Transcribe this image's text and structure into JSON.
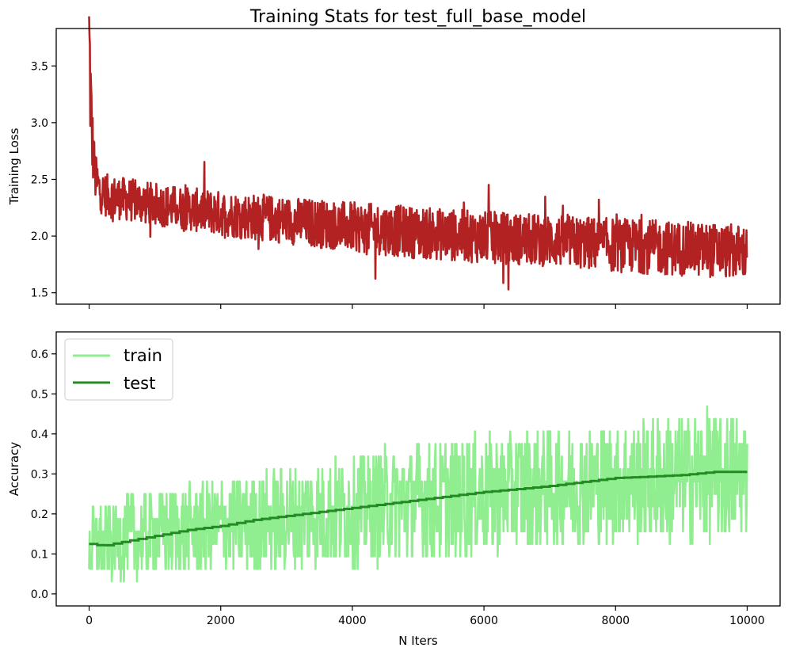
{
  "chart_data": [
    {
      "type": "line",
      "panel": "top",
      "title": "Training Stats for test_full_base_model",
      "xlabel": "",
      "ylabel": "Training Loss",
      "xlim": [
        -500,
        10500
      ],
      "ylim": [
        1.4,
        3.83
      ],
      "grid": false,
      "xticks": [
        0,
        2000,
        4000,
        6000,
        8000,
        10000
      ],
      "yticks": [
        1.5,
        2.0,
        2.5,
        3.0,
        3.5
      ],
      "ytick_labels": [
        "1.5",
        "2.0",
        "2.5",
        "3.0",
        "3.5"
      ],
      "series": [
        {
          "color": "#b22222",
          "x": [
            0,
            20,
            40,
            60,
            80,
            100,
            150,
            200,
            300,
            500,
            1000,
            1500,
            2000,
            3000,
            4000,
            5000,
            6000,
            7000,
            8000,
            9000,
            10000
          ],
          "y": [
            3.72,
            3.3,
            2.9,
            2.75,
            2.6,
            2.5,
            2.42,
            2.38,
            2.35,
            2.33,
            2.28,
            2.24,
            2.2,
            2.14,
            2.08,
            2.03,
            1.99,
            1.96,
            1.92,
            1.89,
            1.86
          ],
          "band": [
            0.7,
            0.55,
            0.4,
            0.3,
            0.25,
            0.22,
            0.2,
            0.19,
            0.19,
            0.19,
            0.19,
            0.19,
            0.2,
            0.21,
            0.22,
            0.23,
            0.23,
            0.23,
            0.24,
            0.24,
            0.24
          ]
        }
      ]
    },
    {
      "type": "line",
      "panel": "bottom",
      "title": "",
      "xlabel": "N Iters",
      "ylabel": "Accuracy",
      "xlim": [
        -500,
        10500
      ],
      "ylim": [
        -0.03,
        0.655
      ],
      "grid": false,
      "legend": "top-left",
      "xticks": [
        0,
        2000,
        4000,
        6000,
        8000,
        10000
      ],
      "xtick_labels": [
        "0",
        "2000",
        "4000",
        "6000",
        "8000",
        "10000"
      ],
      "yticks": [
        0.0,
        0.1,
        0.2,
        0.3,
        0.4,
        0.5,
        0.6
      ],
      "ytick_labels": [
        "0.0",
        "0.1",
        "0.2",
        "0.3",
        "0.4",
        "0.5",
        "0.6"
      ],
      "series": [
        {
          "name": "train",
          "color": "#90ee90",
          "x": [
            0,
            1000,
            2000,
            3000,
            4000,
            5000,
            6000,
            7000,
            8000,
            9000,
            10000
          ],
          "y": [
            0.12,
            0.15,
            0.17,
            0.19,
            0.21,
            0.23,
            0.25,
            0.27,
            0.28,
            0.29,
            0.3
          ],
          "band": [
            0.09,
            0.11,
            0.12,
            0.13,
            0.14,
            0.15,
            0.15,
            0.15,
            0.15,
            0.16,
            0.16
          ]
        },
        {
          "name": "test",
          "color": "#228b22",
          "x": [
            0,
            200,
            500,
            1000,
            1500,
            2000,
            2500,
            3000,
            3500,
            4000,
            4500,
            5000,
            5500,
            6000,
            6500,
            7000,
            7500,
            8000,
            8500,
            9000,
            9500,
            10000
          ],
          "y": [
            0.125,
            0.12,
            0.13,
            0.145,
            0.16,
            0.17,
            0.185,
            0.195,
            0.205,
            0.215,
            0.225,
            0.235,
            0.245,
            0.255,
            0.262,
            0.27,
            0.28,
            0.29,
            0.293,
            0.297,
            0.305,
            0.305
          ]
        }
      ]
    }
  ]
}
